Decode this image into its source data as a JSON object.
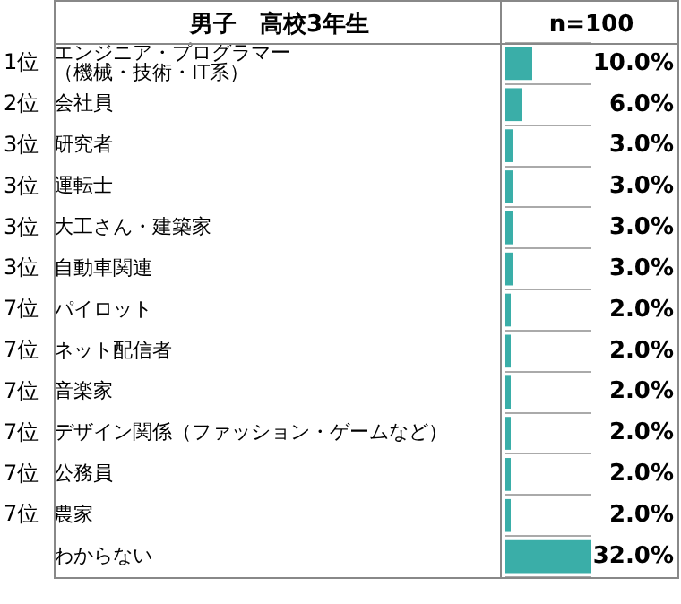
{
  "chart_data": {
    "type": "bar",
    "orientation": "horizontal",
    "title": "男子　高校3年生",
    "subtitle": "n=100",
    "categories": [
      "エンジニア・プログラマー（機械・技術・IT系）",
      "会社員",
      "研究者",
      "運転士",
      "大工さん・建築家",
      "自動車関連",
      "パイロット",
      "ネット配信者",
      "音楽家",
      "デザイン関係（ファッション・ゲームなど）",
      "公務員",
      "農家",
      "わからない"
    ],
    "values": [
      10.0,
      6.0,
      3.0,
      3.0,
      3.0,
      3.0,
      2.0,
      2.0,
      2.0,
      2.0,
      2.0,
      2.0,
      32.0
    ],
    "value_labels": [
      "10.0%",
      "6.0%",
      "3.0%",
      "3.0%",
      "3.0%",
      "3.0%",
      "2.0%",
      "2.0%",
      "2.0%",
      "2.0%",
      "2.0%",
      "2.0%",
      "32.0%"
    ],
    "color": "#3aaea8",
    "grid": "y",
    "tick_labels": "y",
    "legend": false,
    "annotations": [
      "1位",
      "2位",
      "3位",
      "3位",
      "3位",
      "3位",
      "7位",
      "7位",
      "7位",
      "7位",
      "7位",
      "7位"
    ]
  }
}
